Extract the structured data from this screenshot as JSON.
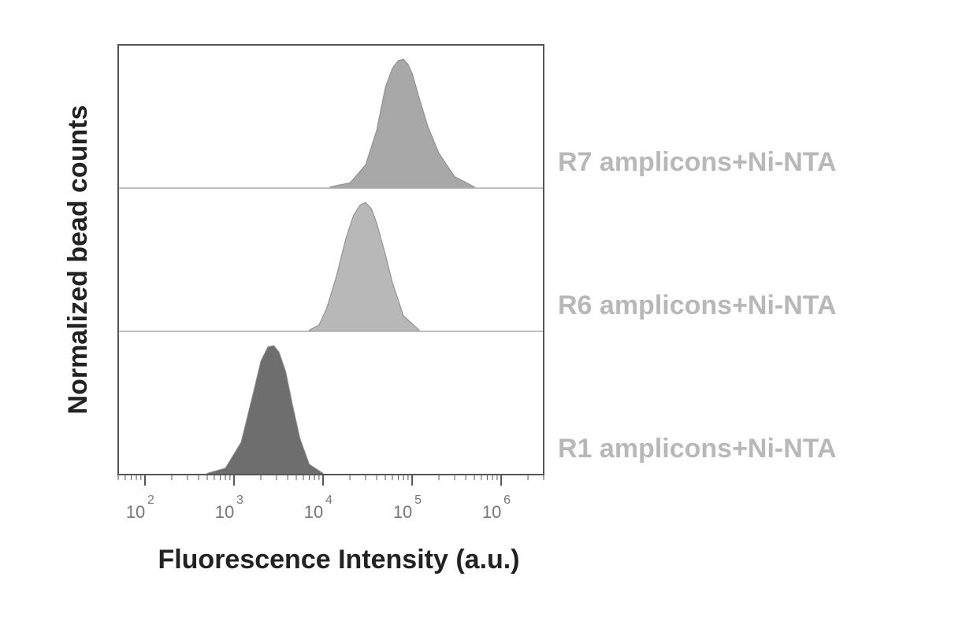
{
  "chart_data": {
    "type": "area",
    "xlabel": "Fluorescence Intensity (a.u.)",
    "ylabel": "Normalized bead counts",
    "x_scale": "log",
    "xlim": [
      50,
      3000000
    ],
    "x_ticks": [
      {
        "base": "10",
        "exp": "2",
        "value": 100
      },
      {
        "base": "10",
        "exp": "3",
        "value": 1000
      },
      {
        "base": "10",
        "exp": "4",
        "value": 10000
      },
      {
        "base": "10",
        "exp": "5",
        "value": 100000
      },
      {
        "base": "10",
        "exp": "6",
        "value": 1000000
      }
    ],
    "series": [
      {
        "name": "R7 amplicons+Ni-NTA",
        "color": "#a8a8a8",
        "x": [
          12000,
          20000,
          30000,
          40000,
          50000,
          60000,
          70000,
          80000,
          90000,
          100000,
          120000,
          150000,
          200000,
          300000,
          500000
        ],
        "values": [
          0.01,
          0.04,
          0.18,
          0.45,
          0.78,
          0.93,
          0.99,
          1.0,
          0.96,
          0.89,
          0.7,
          0.48,
          0.27,
          0.09,
          0.01
        ]
      },
      {
        "name": "R6 amplicons+Ni-NTA",
        "color": "#b8b8b8",
        "x": [
          7000,
          9000,
          11000,
          14000,
          18000,
          22000,
          26000,
          30000,
          35000,
          40000,
          50000,
          60000,
          80000,
          120000
        ],
        "values": [
          0.01,
          0.05,
          0.18,
          0.42,
          0.72,
          0.9,
          0.98,
          1.0,
          0.95,
          0.84,
          0.6,
          0.38,
          0.12,
          0.01
        ]
      },
      {
        "name": "R1 amplicons+Ni-NTA",
        "color": "#6e6e6e",
        "x": [
          500,
          800,
          1200,
          1600,
          2000,
          2400,
          2800,
          3200,
          3800,
          4500,
          5500,
          7000,
          10000
        ],
        "values": [
          0.01,
          0.05,
          0.25,
          0.6,
          0.88,
          0.99,
          1.0,
          0.95,
          0.8,
          0.55,
          0.28,
          0.08,
          0.01
        ]
      }
    ],
    "grid": false,
    "legend": "none"
  }
}
